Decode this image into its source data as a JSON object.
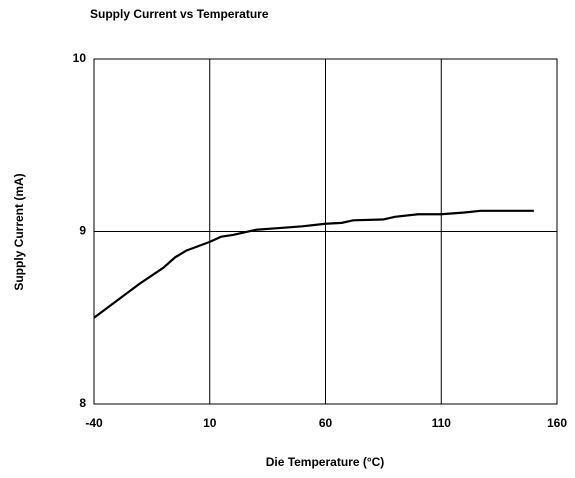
{
  "chart_data": {
    "type": "line",
    "title": "Supply Current vs Temperature",
    "x_label": "Die Temperature (°C)",
    "y_label": "Supply Current (mA)",
    "x": [
      -40,
      -30,
      -20,
      -10,
      -5,
      0,
      10,
      15,
      20,
      30,
      40,
      50,
      60,
      67,
      72,
      85,
      90,
      100,
      110,
      120,
      127,
      140,
      150
    ],
    "series": [
      {
        "name": "Supply Current",
        "color": "#000000",
        "values": [
          8.5,
          8.6,
          8.7,
          8.79,
          8.85,
          8.89,
          8.94,
          8.97,
          8.98,
          9.01,
          9.02,
          9.03,
          9.045,
          9.05,
          9.065,
          9.07,
          9.085,
          9.1,
          9.1,
          9.11,
          9.12,
          9.12,
          9.12
        ]
      }
    ],
    "xlim": [
      -40,
      160
    ],
    "xticks": [
      -40,
      10,
      60,
      110,
      160
    ],
    "ylim": [
      8,
      10
    ],
    "yticks": [
      8,
      9,
      10
    ],
    "grid": true
  }
}
